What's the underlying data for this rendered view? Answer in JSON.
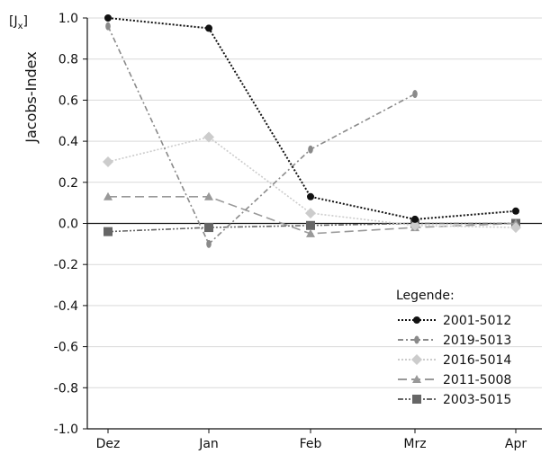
{
  "chart_data": {
    "type": "line",
    "ylabel": "Jacobs-Index",
    "yunit_base": "J",
    "yunit_sub": "x",
    "ylim": [
      -1.0,
      1.0
    ],
    "yticks": [
      1.0,
      0.8,
      0.6,
      0.4,
      0.2,
      0.0,
      -0.2,
      -0.4,
      -0.6,
      -0.8,
      -1.0
    ],
    "ytick_labels": [
      "1.0",
      "0.8",
      "0.6",
      "0.4",
      "0.2",
      "0.0",
      "-0.2",
      "-0.4",
      "-0.6",
      "-0.8",
      "-1.0"
    ],
    "categories": [
      "Dez",
      "Jan",
      "Feb",
      "Mrz",
      "Apr"
    ],
    "grid": true,
    "zero_line": true,
    "legend_title": "Legende:",
    "legend_position": "bottom-right",
    "series": [
      {
        "name": "2001-5012",
        "values": [
          1.0,
          0.95,
          0.13,
          0.02,
          0.06
        ],
        "color": "#111111",
        "marker": "circle",
        "dash": "dotted"
      },
      {
        "name": "2019-5013",
        "values": [
          0.96,
          -0.1,
          0.36,
          0.63,
          null
        ],
        "color": "#8a8a8a",
        "marker": "ellipse",
        "dash": "dashdot"
      },
      {
        "name": "2016-5014",
        "values": [
          0.3,
          0.42,
          0.05,
          -0.01,
          -0.02
        ],
        "color": "#cccccc",
        "marker": "diamond",
        "dash": "dotted"
      },
      {
        "name": "2011-5008",
        "values": [
          0.13,
          0.13,
          -0.05,
          -0.02,
          0.0
        ],
        "color": "#999999",
        "marker": "triangle",
        "dash": "longdash"
      },
      {
        "name": "2003-5015",
        "values": [
          -0.04,
          -0.02,
          -0.01,
          0.0,
          0.0
        ],
        "color": "#666666",
        "marker": "square",
        "dash": "dashdotdot"
      }
    ]
  }
}
